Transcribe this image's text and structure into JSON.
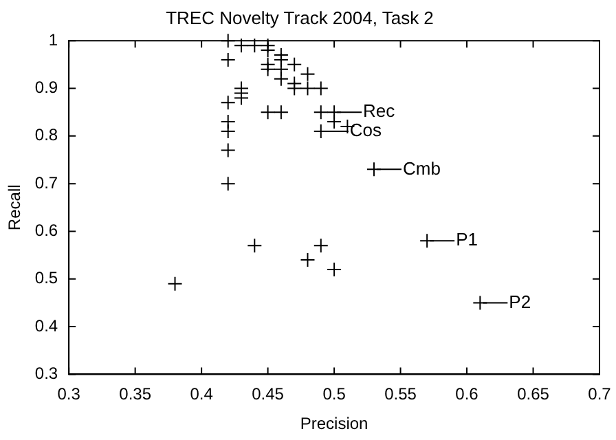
{
  "chart_data": {
    "type": "scatter",
    "title": "TREC Novelty Track 2004, Task 2",
    "xlabel": "Precision",
    "ylabel": "Recall",
    "x": [
      0.42,
      0.42,
      0.43,
      0.44,
      0.45,
      0.45,
      0.46,
      0.46,
      0.45,
      0.45,
      0.46,
      0.47,
      0.46,
      0.47,
      0.48,
      0.47,
      0.48,
      0.49,
      0.43,
      0.43,
      0.43,
      0.42,
      0.42,
      0.42,
      0.42,
      0.42,
      0.45,
      0.46,
      0.49,
      0.5,
      0.5,
      0.51,
      0.49,
      0.53,
      0.57,
      0.61,
      0.38,
      0.44,
      0.48,
      0.49,
      0.5
    ],
    "series": [
      {
        "color": "#000000",
        "values": [
          1.0,
          0.96,
          0.99,
          0.99,
          0.99,
          0.98,
          0.97,
          0.96,
          0.95,
          0.94,
          0.94,
          0.95,
          0.92,
          0.91,
          0.93,
          0.9,
          0.9,
          0.9,
          0.9,
          0.89,
          0.88,
          0.87,
          0.83,
          0.81,
          0.77,
          0.7,
          0.85,
          0.85,
          0.85,
          0.85,
          0.83,
          0.82,
          0.81,
          0.73,
          0.58,
          0.45,
          0.49,
          0.57,
          0.54,
          0.57,
          0.52
        ]
      }
    ],
    "annotations": [
      {
        "text": "Rec",
        "x": 0.5,
        "y": 0.85
      },
      {
        "text": "Cos",
        "x": 0.49,
        "y": 0.81
      },
      {
        "text": "Cmb",
        "x": 0.53,
        "y": 0.73
      },
      {
        "text": "P1",
        "x": 0.57,
        "y": 0.58
      },
      {
        "text": "P2",
        "x": 0.61,
        "y": 0.45
      }
    ],
    "xlim": [
      0.3,
      0.7
    ],
    "xticks": [
      0.3,
      0.35,
      0.4,
      0.45,
      0.5,
      0.55,
      0.6,
      0.65,
      0.7
    ],
    "ylim": [
      0.3,
      1
    ],
    "yticks": [
      0.3,
      0.4,
      0.5,
      0.6,
      0.7,
      0.8,
      0.9,
      1
    ],
    "marker": "cross",
    "grid": false,
    "legend": false
  }
}
